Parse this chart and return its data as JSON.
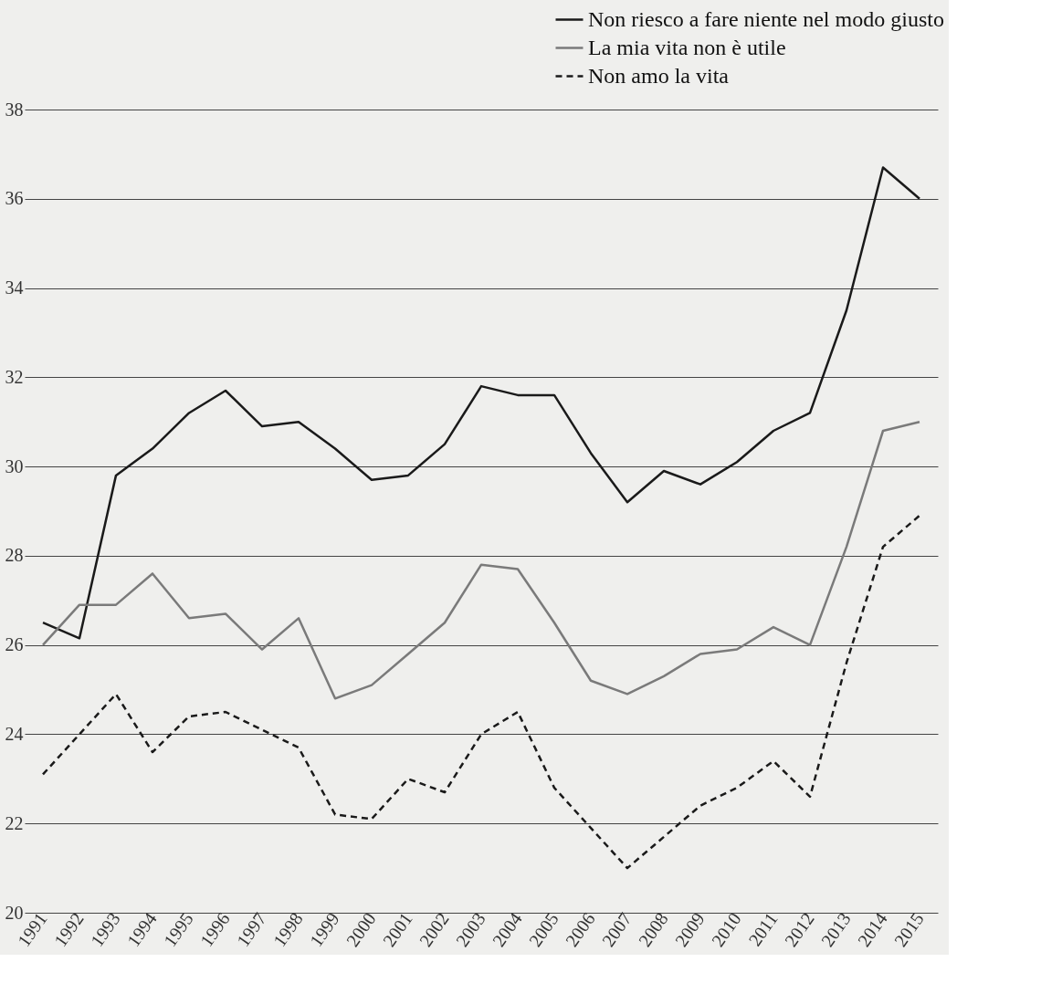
{
  "chart_data": {
    "type": "line",
    "categories": [
      "1991",
      "1992",
      "1993",
      "1994",
      "1995",
      "1996",
      "1997",
      "1998",
      "1999",
      "2000",
      "2001",
      "2002",
      "2003",
      "2004",
      "2005",
      "2006",
      "2007",
      "2008",
      "2009",
      "2010",
      "2011",
      "2012",
      "2013",
      "2014",
      "2015"
    ],
    "series": [
      {
        "name": "Non riesco a fare niente nel modo giusto",
        "color": "#1a1a1a",
        "line_style": "solid",
        "values": [
          26.5,
          26.15,
          29.8,
          30.4,
          31.2,
          31.7,
          30.9,
          31.0,
          30.4,
          29.7,
          29.8,
          30.5,
          31.8,
          31.6,
          31.6,
          30.3,
          29.2,
          29.9,
          29.6,
          30.1,
          30.8,
          31.2,
          33.5,
          36.7,
          36.0
        ]
      },
      {
        "name": "La mia vita non è utile",
        "color": "#7a7a7a",
        "line_style": "solid",
        "values": [
          26.0,
          26.9,
          26.9,
          27.6,
          26.6,
          26.7,
          25.9,
          26.6,
          24.8,
          25.1,
          25.8,
          26.5,
          27.8,
          27.7,
          26.5,
          25.2,
          24.9,
          25.3,
          25.8,
          25.9,
          26.4,
          26.0,
          28.2,
          30.8,
          31.0
        ]
      },
      {
        "name": "Non amo la vita",
        "color": "#1a1a1a",
        "line_style": "dashed",
        "values": [
          23.1,
          24.0,
          24.9,
          23.6,
          24.4,
          24.5,
          24.1,
          23.7,
          22.2,
          22.1,
          23.0,
          22.7,
          24.0,
          24.5,
          22.8,
          21.9,
          21.0,
          21.7,
          22.4,
          22.8,
          23.4,
          22.6,
          25.6,
          28.2,
          28.9
        ]
      }
    ],
    "ylim": [
      20,
      38
    ],
    "yticks": [
      20,
      22,
      24,
      26,
      28,
      30,
      32,
      34,
      36,
      38
    ],
    "grid": "y",
    "legend": "top right",
    "marker": "none"
  }
}
